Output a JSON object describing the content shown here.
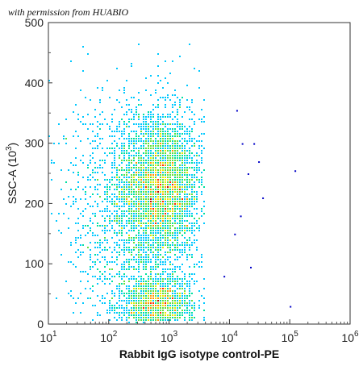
{
  "watermark": "with permission from HUABIO",
  "chart_data": {
    "type": "scatter",
    "subtype": "flow-cytometry density dot plot",
    "xlabel": "Rabbit IgG isotype control-PE",
    "ylabel": "SSC-A (10^3)",
    "x_scale": "log",
    "xlim": [
      10,
      1000000
    ],
    "ylim": [
      0,
      500
    ],
    "x_ticks": [
      {
        "value": 10,
        "base": "10",
        "exp": "1"
      },
      {
        "value": 100,
        "base": "10",
        "exp": "2"
      },
      {
        "value": 1000,
        "base": "10",
        "exp": "3"
      },
      {
        "value": 10000,
        "base": "10",
        "exp": "4"
      },
      {
        "value": 100000,
        "base": "10",
        "exp": "5"
      },
      {
        "value": 1000000,
        "base": "10",
        "exp": "6"
      }
    ],
    "y_ticks": [
      "0",
      "100",
      "200",
      "300",
      "400",
      "500"
    ],
    "density_colormap": [
      "#0000c8",
      "#0050ff",
      "#00c8ff",
      "#00e0a0",
      "#60e040",
      "#e8e800",
      "#ff9600",
      "#ff2800",
      "#c80000"
    ],
    "populations": [
      {
        "name": "main cluster",
        "x_center": 750,
        "y_center": 225,
        "x_spread_decades": 0.34,
        "y_spread": 58
      },
      {
        "name": "low-SSC cluster",
        "x_center": 650,
        "y_center": 35,
        "x_spread_decades": 0.3,
        "y_spread": 22
      },
      {
        "name": "broad background",
        "x_center": 250,
        "y_center": 180,
        "x_spread_decades": 0.55,
        "y_spread": 110
      }
    ],
    "outlier_points": [
      {
        "x": 13000,
        "y": 355
      },
      {
        "x": 16000,
        "y": 300
      },
      {
        "x": 25000,
        "y": 300
      },
      {
        "x": 30000,
        "y": 270
      },
      {
        "x": 20000,
        "y": 250
      },
      {
        "x": 120000,
        "y": 255
      },
      {
        "x": 100000,
        "y": 30
      },
      {
        "x": 22000,
        "y": 95
      },
      {
        "x": 8000,
        "y": 80
      },
      {
        "x": 35000,
        "y": 210
      },
      {
        "x": 12000,
        "y": 150
      },
      {
        "x": 15000,
        "y": 180
      }
    ],
    "grid": false,
    "legend": "none"
  }
}
